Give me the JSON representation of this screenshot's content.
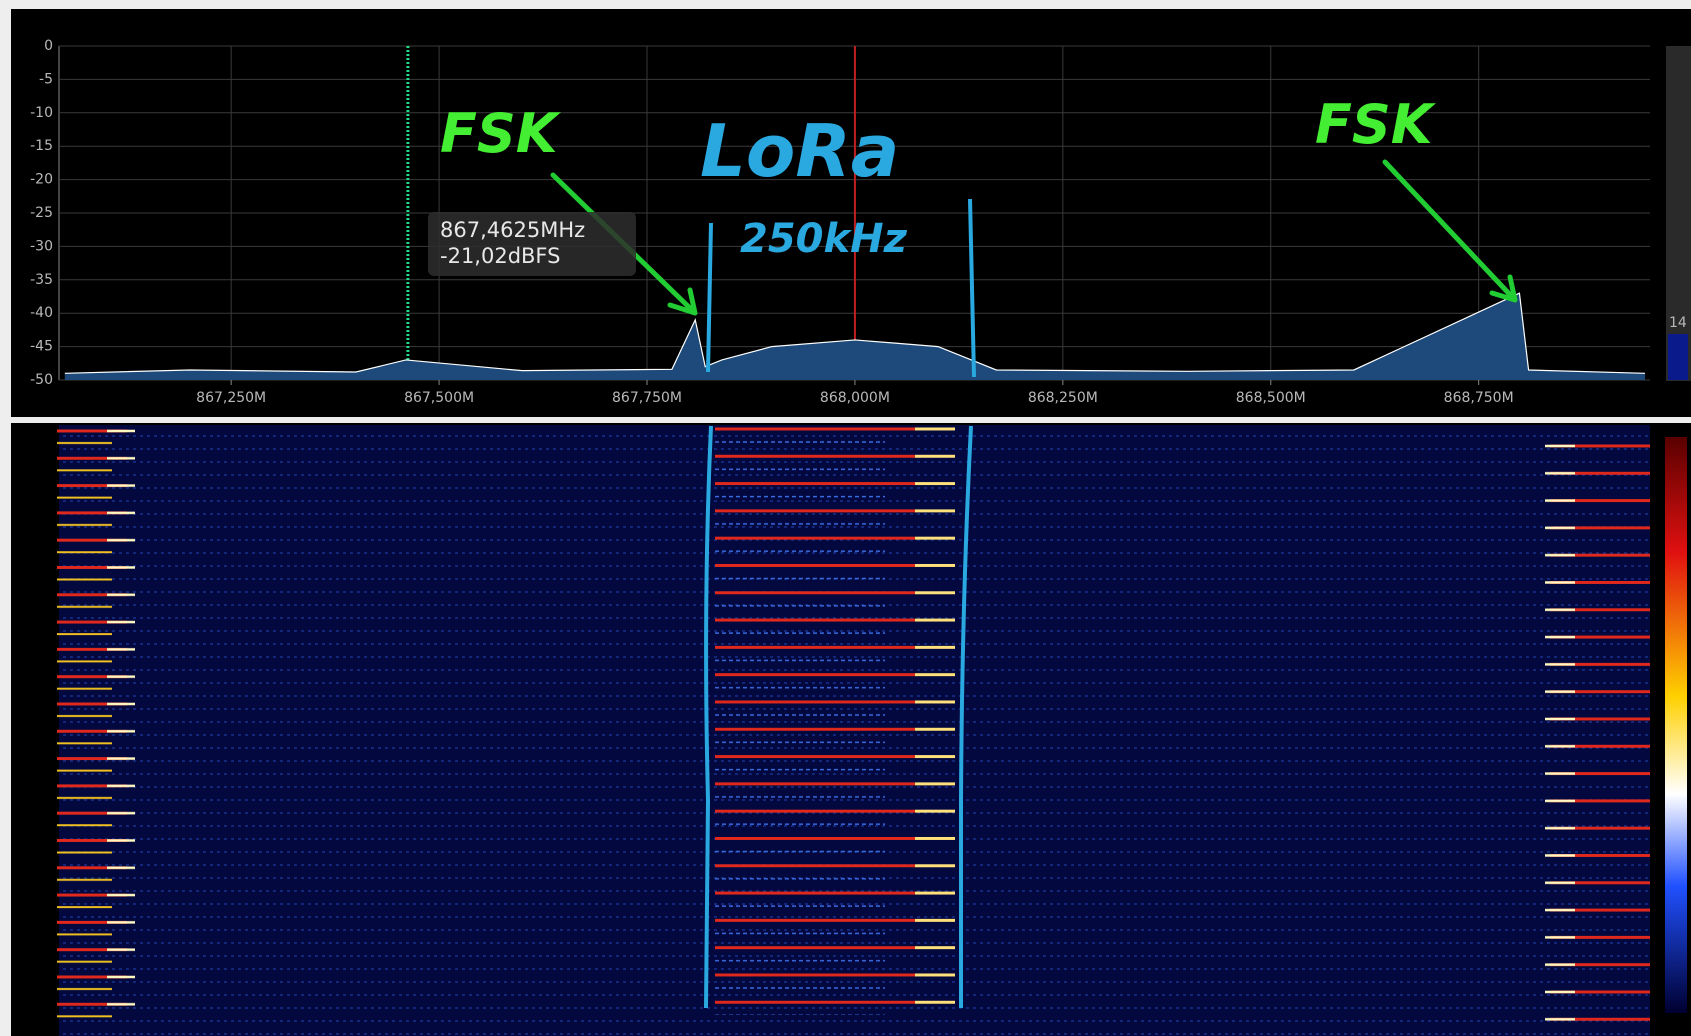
{
  "chart_data": {
    "type": "line",
    "color": "#ffffff",
    "fill": "#1d4a7a",
    "x": [
      867.05,
      867.2,
      867.4,
      867.46,
      867.6,
      867.78,
      867.808,
      867.82,
      867.84,
      867.9,
      868.0,
      868.1,
      868.14,
      868.17,
      868.4,
      868.6,
      868.799,
      868.81,
      868.95
    ],
    "values": [
      -49,
      -48.5,
      -48.8,
      -47,
      -48.6,
      -48.4,
      -41,
      -48,
      -47,
      -45,
      -44,
      -45,
      -47,
      -48.5,
      -48.7,
      -48.5,
      -37,
      -48.5,
      -49
    ],
    "xlim": [
      867.043,
      868.956
    ],
    "xticks": [
      {
        "value": 867.25,
        "label": "867,250M"
      },
      {
        "value": 867.5,
        "label": "867,500M"
      },
      {
        "value": 867.75,
        "label": "867,750M"
      },
      {
        "value": 868.0,
        "label": "868,000M"
      },
      {
        "value": 868.25,
        "label": "868,250M"
      },
      {
        "value": 868.5,
        "label": "868,500M"
      },
      {
        "value": 868.75,
        "label": "868,750M"
      }
    ],
    "ylim": [
      -50,
      0
    ],
    "yticks": [
      0,
      -5,
      -10,
      -15,
      -20,
      -25,
      -30,
      -35,
      -40,
      -45,
      -50
    ],
    "grid": true,
    "center_freq": 868.0,
    "marker_freq": 867.4625,
    "tooltip": [
      "867,4625MHz",
      "-21,02dBFS"
    ],
    "annotations": [
      "FSK",
      "LoRa",
      "250kHz",
      "FSK"
    ],
    "scale_label": "14"
  }
}
